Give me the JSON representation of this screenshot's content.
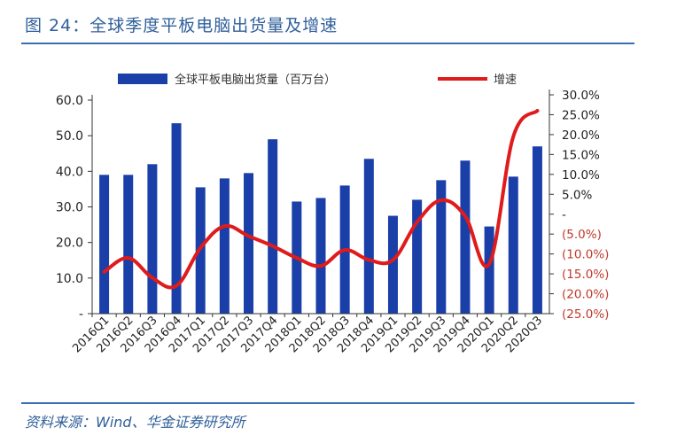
{
  "header": {
    "title": "图 24：全球季度平板电脑出货量及增速"
  },
  "footer": {
    "source": "资料来源：Wind、华金证券研究所"
  },
  "colors": {
    "bar": "#1b3fa8",
    "line": "#e01b1b",
    "accent": "#3a6fb0",
    "negative_tick": "#c0392b"
  },
  "chart_data": {
    "type": "bar",
    "categories": [
      "2016Q1",
      "2016Q2",
      "2016Q3",
      "2016Q4",
      "2017Q1",
      "2017Q2",
      "2017Q3",
      "2017Q4",
      "2018Q1",
      "2018Q2",
      "2018Q3",
      "2018Q4",
      "2019Q1",
      "2019Q2",
      "2019Q3",
      "2019Q4",
      "2020Q1",
      "2020Q2",
      "2020Q3"
    ],
    "series": [
      {
        "name": "全球平板电脑出货量（百万台）",
        "type": "bar",
        "axis": "left",
        "values": [
          39.0,
          39.0,
          42.0,
          53.5,
          35.5,
          38.0,
          39.5,
          49.0,
          31.5,
          32.5,
          36.0,
          43.5,
          27.5,
          32.0,
          37.5,
          43.0,
          24.5,
          38.5,
          47.0
        ]
      },
      {
        "name": "增速",
        "type": "line",
        "axis": "right",
        "values": [
          -14.5,
          -11.0,
          -16.0,
          -18.0,
          -8.5,
          -3.0,
          -5.5,
          -8.0,
          -11.0,
          -13.0,
          -9.0,
          -11.5,
          -11.5,
          -2.0,
          3.5,
          -0.5,
          -12.5,
          19.5,
          26.0
        ]
      }
    ],
    "y_left": {
      "range": [
        0,
        60
      ],
      "ticks": [
        {
          "value": 0,
          "label": "-"
        },
        {
          "value": 10,
          "label": "10.0"
        },
        {
          "value": 20,
          "label": "20.0"
        },
        {
          "value": 30,
          "label": "30.0"
        },
        {
          "value": 40,
          "label": "40.0"
        },
        {
          "value": 50,
          "label": "50.0"
        },
        {
          "value": 60,
          "label": "60.0"
        }
      ]
    },
    "y_right": {
      "range": [
        -25,
        30
      ],
      "ticks": [
        {
          "value": 30,
          "label": "30.0%"
        },
        {
          "value": 25,
          "label": "25.0%"
        },
        {
          "value": 20,
          "label": "20.0%"
        },
        {
          "value": 15,
          "label": "15.0%"
        },
        {
          "value": 10,
          "label": "10.0%"
        },
        {
          "value": 5,
          "label": "5.0%"
        },
        {
          "value": 0,
          "label": "-"
        },
        {
          "value": -5,
          "label": "(5.0%)"
        },
        {
          "value": -10,
          "label": "(10.0%)"
        },
        {
          "value": -15,
          "label": "(15.0%)"
        },
        {
          "value": -20,
          "label": "(20.0%)"
        },
        {
          "value": -25,
          "label": "(25.0%)"
        }
      ]
    },
    "grid": false,
    "legend": "top-center"
  }
}
